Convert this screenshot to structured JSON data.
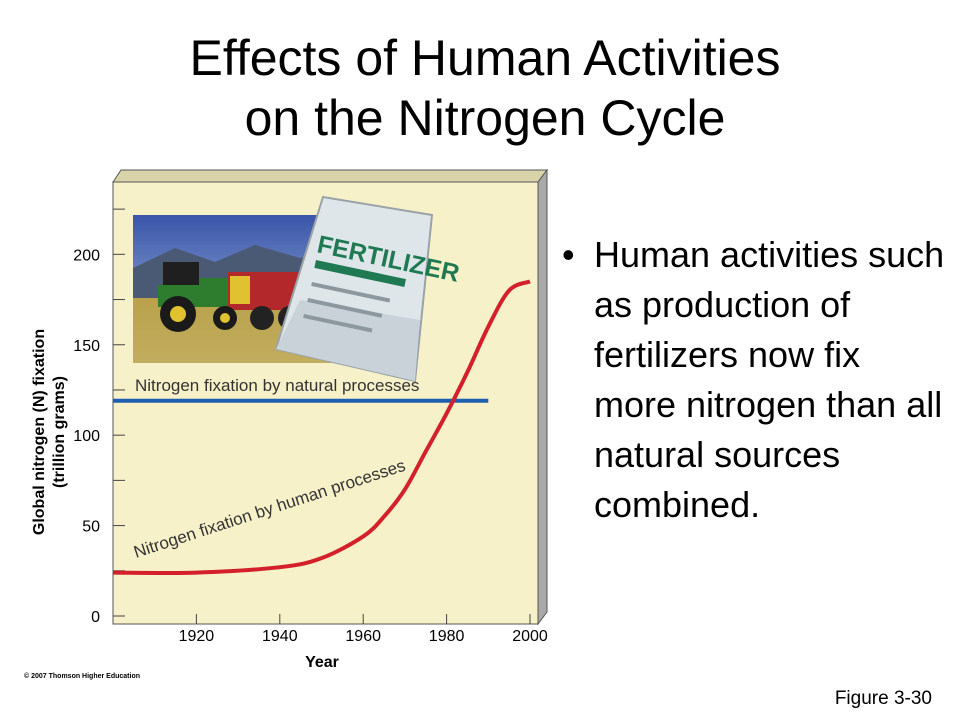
{
  "slide": {
    "title_line1": "Effects of Human Activities",
    "title_line2": "on the Nitrogen Cycle",
    "bullet": "Human activities such as production of fertilizers now fix more nitrogen than all natural sources combined.",
    "figure_label": "Figure 3-30",
    "copyright": "© 2007 Thomson Higher Education",
    "photo_bag_label": "FERTILIZER"
  },
  "chart_data": {
    "type": "line",
    "xlabel": "Year",
    "ylabel": "Global nitrogen (N) fixation",
    "ylabel_unit": "(trillion grams)",
    "xlim": [
      1900,
      2000
    ],
    "ylim": [
      0,
      240
    ],
    "x_ticks": [
      1920,
      1940,
      1960,
      1980,
      2000
    ],
    "y_ticks": [
      0,
      50,
      100,
      150,
      200
    ],
    "colors": {
      "panel": "#f6f1c8",
      "natural": "#1f5fb0",
      "human": "#d4202a"
    },
    "series": [
      {
        "name": "Nitrogen fixation by natural processes",
        "x": [
          1900,
          1990
        ],
        "y": [
          119,
          119
        ]
      },
      {
        "name": "Nitrogen fixation by human processes",
        "x": [
          1900,
          1920,
          1940,
          1950,
          1960,
          1965,
          1970,
          1975,
          1980,
          1985,
          1990,
          1995,
          2000
        ],
        "y": [
          24,
          24,
          27,
          32,
          44,
          55,
          70,
          91,
          112,
          135,
          160,
          180,
          185
        ]
      }
    ]
  }
}
